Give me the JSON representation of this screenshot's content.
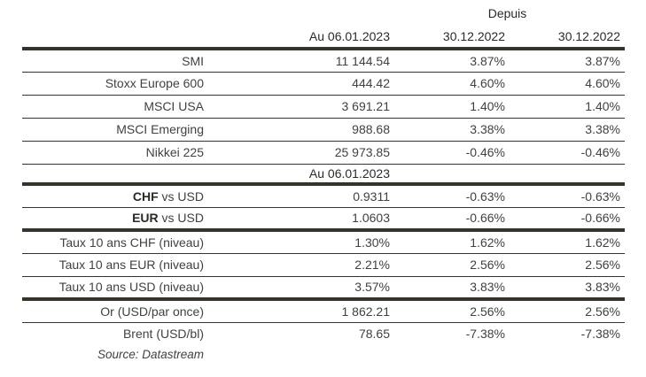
{
  "colors": {
    "rule": "#36342a",
    "text": "#414141",
    "heading": "#2b2a27",
    "bg": "#ffffff"
  },
  "header": {
    "depuis": "Depuis",
    "date_col": "Au 06.01.2023",
    "since_col1": "30.12.2022",
    "since_col2": "30.12.2022"
  },
  "section2": {
    "header": "Au 06.01.2023"
  },
  "rows": {
    "indices": [
      {
        "label": "SMI",
        "value": "11 144.54",
        "pct1": "3.87%",
        "pct2": "3.87%"
      },
      {
        "label": "Stoxx Europe 600",
        "value": "444.42",
        "pct1": "4.60%",
        "pct2": "4.60%"
      },
      {
        "label": "MSCI USA",
        "value": "3 691.21",
        "pct1": "1.40%",
        "pct2": "1.40%"
      },
      {
        "label": "MSCI Emerging",
        "value": "988.68",
        "pct1": "3.38%",
        "pct2": "3.38%"
      },
      {
        "label": "Nikkei 225",
        "value": "25 973.85",
        "pct1": "-0.46%",
        "pct2": "-0.46%"
      }
    ],
    "currencies": [
      {
        "label_bold": "CHF",
        "label_rest": " vs USD",
        "value": "0.9311",
        "pct1": "-0.63%",
        "pct2": "-0.63%"
      },
      {
        "label_bold": "EUR",
        "label_rest": " vs USD",
        "value": "1.0603",
        "pct1": "-0.66%",
        "pct2": "-0.66%"
      }
    ],
    "rates": [
      {
        "label": "Taux 10 ans CHF (niveau)",
        "value": "1.30%",
        "pct1": "1.62%",
        "pct2": "1.62%"
      },
      {
        "label": "Taux 10 ans EUR (niveau)",
        "value": "2.21%",
        "pct1": "2.56%",
        "pct2": "2.56%"
      },
      {
        "label": "Taux 10 ans USD (niveau)",
        "value": "3.57%",
        "pct1": "3.83%",
        "pct2": "3.83%"
      }
    ],
    "commodities": [
      {
        "label": "Or (USD/par once)",
        "value": "1 862.21",
        "pct1": "2.56%",
        "pct2": "2.56%"
      },
      {
        "label": "Brent (USD/bl)",
        "value": "78.65",
        "pct1": "-7.38%",
        "pct2": "-7.38%"
      }
    ]
  },
  "footer": {
    "source": "Source: Datastream"
  }
}
